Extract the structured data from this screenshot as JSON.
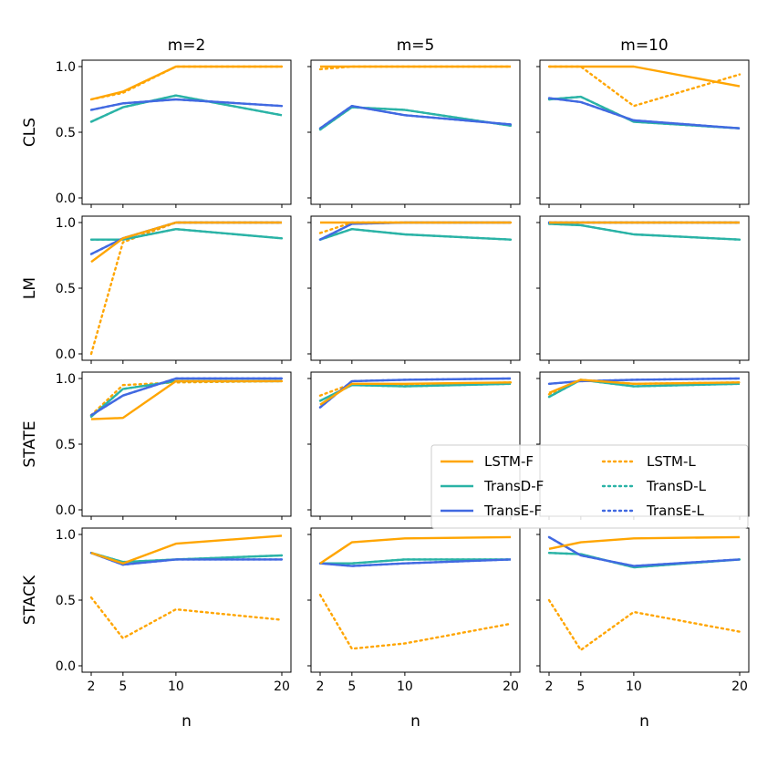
{
  "chart_data": {
    "type": "line",
    "x": [
      2,
      5,
      10,
      20
    ],
    "xlabel": "n",
    "x_ticks": [
      "2",
      "5",
      "10",
      "20"
    ],
    "ylim": [
      0,
      1
    ],
    "y_ticks": [
      "0.0",
      "0.5",
      "1.0"
    ],
    "columns": [
      "m=2",
      "m=5",
      "m=10"
    ],
    "rows": [
      "CLS",
      "LM",
      "STATE",
      "STACK"
    ],
    "series_styles": [
      {
        "name": "LSTM-F",
        "color": "#FFA500",
        "dash": "solid"
      },
      {
        "name": "TransD-F",
        "color": "#2AB3A6",
        "dash": "solid"
      },
      {
        "name": "TransE-F",
        "color": "#4169E1",
        "dash": "solid"
      },
      {
        "name": "LSTM-L",
        "color": "#FFA500",
        "dash": "dotted"
      },
      {
        "name": "TransD-L",
        "color": "#2AB3A6",
        "dash": "dotted"
      },
      {
        "name": "TransE-L",
        "color": "#4169E1",
        "dash": "dotted"
      }
    ],
    "legend_order": [
      "LSTM-F",
      "LSTM-L",
      "TransD-F",
      "TransD-L",
      "TransE-F",
      "TransE-L"
    ],
    "legend_location": "center-right, third row",
    "panels": [
      {
        "row": "CLS",
        "col": "m=2",
        "series": [
          {
            "name": "LSTM-F",
            "values": [
              0.75,
              0.81,
              1.0,
              1.0
            ]
          },
          {
            "name": "LSTM-L",
            "values": [
              0.75,
              0.8,
              1.0,
              1.0
            ]
          },
          {
            "name": "TransD-F",
            "values": [
              0.58,
              0.69,
              0.78,
              0.63
            ]
          },
          {
            "name": "TransD-L",
            "values": [
              0.58,
              0.69,
              0.78,
              0.63
            ]
          },
          {
            "name": "TransE-F",
            "values": [
              0.67,
              0.72,
              0.75,
              0.7
            ]
          },
          {
            "name": "TransE-L",
            "values": [
              0.67,
              0.72,
              0.75,
              0.7
            ]
          }
        ]
      },
      {
        "row": "CLS",
        "col": "m=5",
        "series": [
          {
            "name": "LSTM-F",
            "values": [
              1.0,
              1.0,
              1.0,
              1.0
            ]
          },
          {
            "name": "LSTM-L",
            "values": [
              0.98,
              1.0,
              1.0,
              1.0
            ]
          },
          {
            "name": "TransD-F",
            "values": [
              0.52,
              0.69,
              0.67,
              0.55
            ]
          },
          {
            "name": "TransD-L",
            "values": [
              0.52,
              0.69,
              0.67,
              0.55
            ]
          },
          {
            "name": "TransE-F",
            "values": [
              0.53,
              0.7,
              0.63,
              0.56
            ]
          },
          {
            "name": "TransE-L",
            "values": [
              0.53,
              0.7,
              0.63,
              0.56
            ]
          }
        ]
      },
      {
        "row": "CLS",
        "col": "m=10",
        "series": [
          {
            "name": "LSTM-F",
            "values": [
              1.0,
              1.0,
              1.0,
              0.85
            ]
          },
          {
            "name": "LSTM-L",
            "values": [
              1.0,
              1.0,
              0.7,
              0.94
            ]
          },
          {
            "name": "TransD-F",
            "values": [
              0.75,
              0.77,
              0.58,
              0.53
            ]
          },
          {
            "name": "TransD-L",
            "values": [
              0.75,
              0.77,
              0.58,
              0.53
            ]
          },
          {
            "name": "TransE-F",
            "values": [
              0.76,
              0.73,
              0.59,
              0.53
            ]
          },
          {
            "name": "TransE-L",
            "values": [
              0.76,
              0.73,
              0.59,
              0.53
            ]
          }
        ]
      },
      {
        "row": "LM",
        "col": "m=2",
        "series": [
          {
            "name": "LSTM-F",
            "values": [
              0.7,
              0.88,
              1.0,
              1.0
            ]
          },
          {
            "name": "LSTM-L",
            "values": [
              0.0,
              0.85,
              1.0,
              1.0
            ]
          },
          {
            "name": "TransD-F",
            "values": [
              0.87,
              0.87,
              0.95,
              0.88
            ]
          },
          {
            "name": "TransD-L",
            "values": [
              0.87,
              0.87,
              0.95,
              0.88
            ]
          },
          {
            "name": "TransE-F",
            "values": [
              0.76,
              0.88,
              1.0,
              1.0
            ]
          },
          {
            "name": "TransE-L",
            "values": [
              0.76,
              0.88,
              1.0,
              1.0
            ]
          }
        ]
      },
      {
        "row": "LM",
        "col": "m=5",
        "series": [
          {
            "name": "LSTM-F",
            "values": [
              1.0,
              1.0,
              1.0,
              1.0
            ]
          },
          {
            "name": "LSTM-L",
            "values": [
              0.92,
              1.0,
              1.0,
              1.0
            ]
          },
          {
            "name": "TransD-F",
            "values": [
              0.87,
              0.95,
              0.91,
              0.87
            ]
          },
          {
            "name": "TransD-L",
            "values": [
              0.87,
              0.95,
              0.91,
              0.87
            ]
          },
          {
            "name": "TransE-F",
            "values": [
              0.87,
              0.99,
              1.0,
              1.0
            ]
          },
          {
            "name": "TransE-L",
            "values": [
              0.87,
              0.99,
              1.0,
              1.0
            ]
          }
        ]
      },
      {
        "row": "LM",
        "col": "m=10",
        "series": [
          {
            "name": "LSTM-F",
            "values": [
              1.0,
              1.0,
              1.0,
              1.0
            ]
          },
          {
            "name": "LSTM-L",
            "values": [
              1.0,
              1.0,
              1.0,
              1.0
            ]
          },
          {
            "name": "TransD-F",
            "values": [
              0.99,
              0.98,
              0.91,
              0.87
            ]
          },
          {
            "name": "TransD-L",
            "values": [
              0.99,
              0.98,
              0.91,
              0.87
            ]
          },
          {
            "name": "TransE-F",
            "values": [
              1.0,
              1.0,
              1.0,
              1.0
            ]
          },
          {
            "name": "TransE-L",
            "values": [
              1.0,
              1.0,
              1.0,
              1.0
            ]
          }
        ]
      },
      {
        "row": "STATE",
        "col": "m=2",
        "series": [
          {
            "name": "LSTM-F",
            "values": [
              0.69,
              0.7,
              0.98,
              0.98
            ]
          },
          {
            "name": "LSTM-L",
            "values": [
              0.72,
              0.95,
              0.97,
              0.98
            ]
          },
          {
            "name": "TransD-F",
            "values": [
              0.71,
              0.92,
              0.98,
              0.98
            ]
          },
          {
            "name": "TransD-L",
            "values": [
              0.71,
              0.92,
              0.98,
              0.98
            ]
          },
          {
            "name": "TransE-F",
            "values": [
              0.72,
              0.87,
              1.0,
              1.0
            ]
          },
          {
            "name": "TransE-L",
            "values": [
              0.72,
              0.87,
              1.0,
              1.0
            ]
          }
        ]
      },
      {
        "row": "STATE",
        "col": "m=5",
        "series": [
          {
            "name": "LSTM-F",
            "values": [
              0.8,
              0.96,
              0.96,
              0.97
            ]
          },
          {
            "name": "LSTM-L",
            "values": [
              0.87,
              0.96,
              0.95,
              0.97
            ]
          },
          {
            "name": "TransD-F",
            "values": [
              0.83,
              0.95,
              0.94,
              0.96
            ]
          },
          {
            "name": "TransD-L",
            "values": [
              0.83,
              0.95,
              0.94,
              0.96
            ]
          },
          {
            "name": "TransE-F",
            "values": [
              0.78,
              0.98,
              0.99,
              1.0
            ]
          },
          {
            "name": "TransE-L",
            "values": [
              0.78,
              0.98,
              0.99,
              1.0
            ]
          }
        ]
      },
      {
        "row": "STATE",
        "col": "m=10",
        "series": [
          {
            "name": "LSTM-F",
            "values": [
              0.89,
              0.99,
              0.96,
              0.97
            ]
          },
          {
            "name": "LSTM-L",
            "values": [
              0.88,
              0.99,
              0.96,
              0.97
            ]
          },
          {
            "name": "TransD-F",
            "values": [
              0.86,
              0.99,
              0.94,
              0.96
            ]
          },
          {
            "name": "TransD-L",
            "values": [
              0.86,
              0.99,
              0.94,
              0.96
            ]
          },
          {
            "name": "TransE-F",
            "values": [
              0.96,
              0.98,
              0.99,
              1.0
            ]
          },
          {
            "name": "TransE-L",
            "values": [
              0.96,
              0.98,
              0.99,
              1.0
            ]
          }
        ]
      },
      {
        "row": "STACK",
        "col": "m=2",
        "series": [
          {
            "name": "LSTM-F",
            "values": [
              0.86,
              0.78,
              0.93,
              0.99
            ]
          },
          {
            "name": "LSTM-L",
            "values": [
              0.52,
              0.21,
              0.43,
              0.35
            ]
          },
          {
            "name": "TransD-F",
            "values": [
              0.86,
              0.79,
              0.81,
              0.84
            ]
          },
          {
            "name": "TransD-L",
            "values": [
              0.86,
              0.79,
              0.81,
              0.84
            ]
          },
          {
            "name": "TransE-F",
            "values": [
              0.86,
              0.77,
              0.81,
              0.81
            ]
          },
          {
            "name": "TransE-L",
            "values": [
              0.86,
              0.77,
              0.81,
              0.81
            ]
          }
        ]
      },
      {
        "row": "STACK",
        "col": "m=5",
        "series": [
          {
            "name": "LSTM-F",
            "values": [
              0.78,
              0.94,
              0.97,
              0.98
            ]
          },
          {
            "name": "LSTM-L",
            "values": [
              0.54,
              0.13,
              0.17,
              0.32
            ]
          },
          {
            "name": "TransD-F",
            "values": [
              0.78,
              0.78,
              0.81,
              0.81
            ]
          },
          {
            "name": "TransD-L",
            "values": [
              0.78,
              0.78,
              0.81,
              0.81
            ]
          },
          {
            "name": "TransE-F",
            "values": [
              0.78,
              0.76,
              0.78,
              0.81
            ]
          },
          {
            "name": "TransE-L",
            "values": [
              0.78,
              0.76,
              0.78,
              0.81
            ]
          }
        ]
      },
      {
        "row": "STACK",
        "col": "m=10",
        "series": [
          {
            "name": "LSTM-F",
            "values": [
              0.89,
              0.94,
              0.97,
              0.98
            ]
          },
          {
            "name": "LSTM-L",
            "values": [
              0.5,
              0.12,
              0.41,
              0.26
            ]
          },
          {
            "name": "TransD-F",
            "values": [
              0.86,
              0.85,
              0.75,
              0.81
            ]
          },
          {
            "name": "TransD-L",
            "values": [
              0.86,
              0.85,
              0.75,
              0.81
            ]
          },
          {
            "name": "TransE-F",
            "values": [
              0.98,
              0.84,
              0.76,
              0.81
            ]
          },
          {
            "name": "TransE-L",
            "values": [
              0.98,
              0.84,
              0.76,
              0.81
            ]
          }
        ]
      }
    ]
  }
}
